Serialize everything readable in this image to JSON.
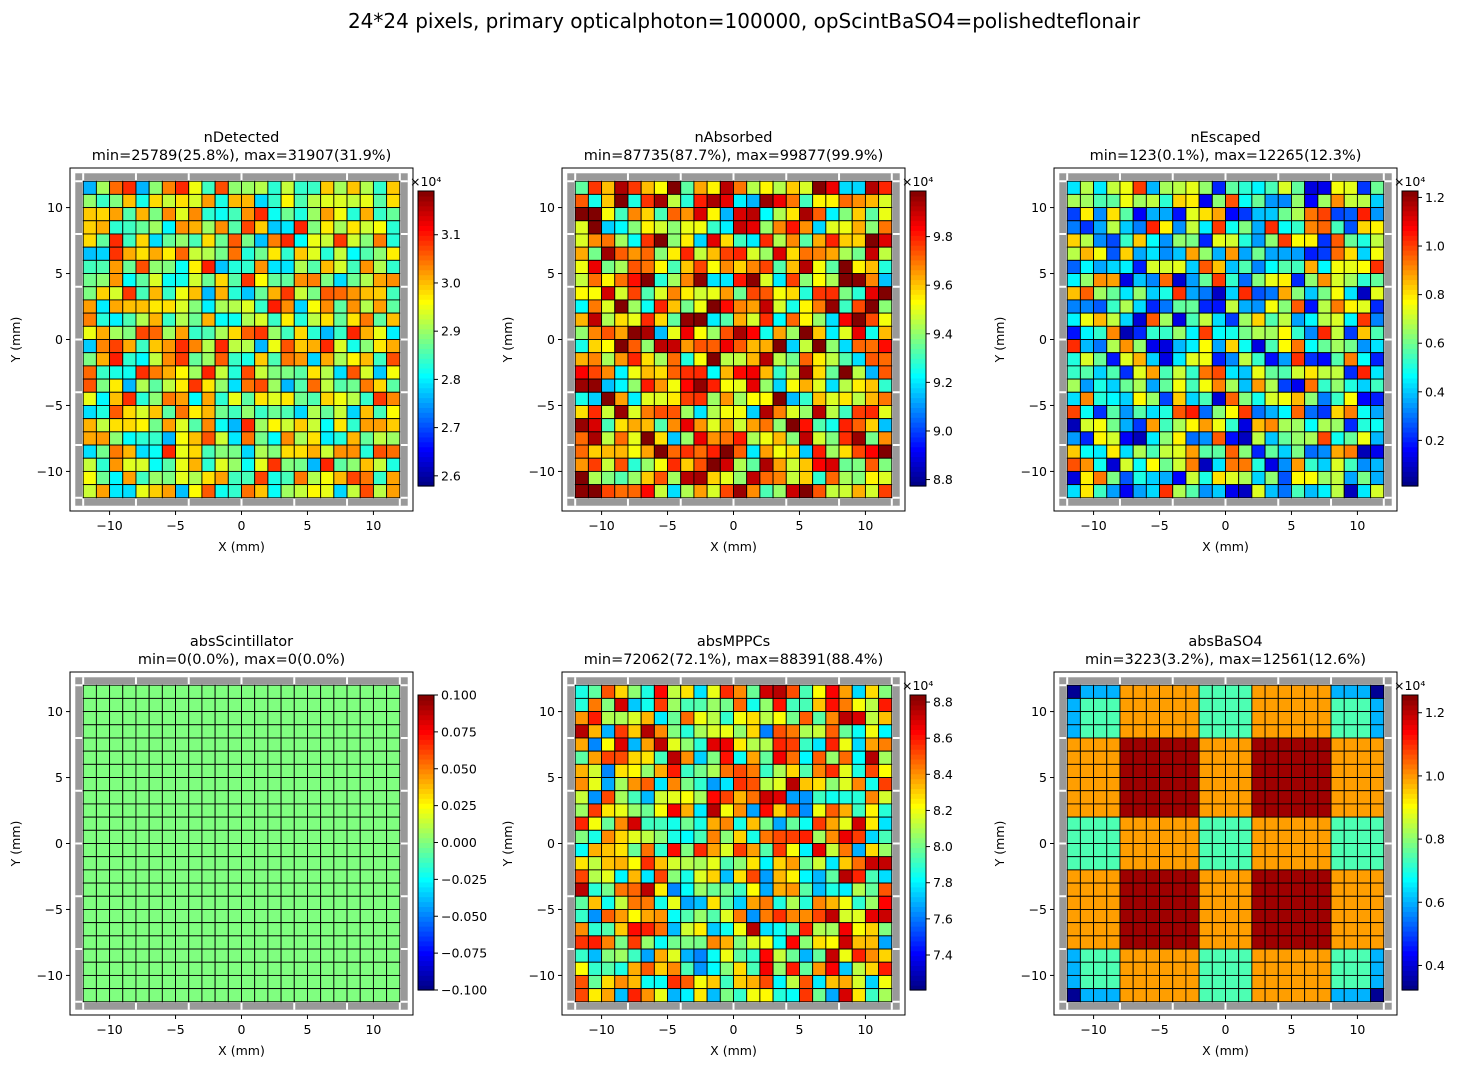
{
  "figure_title": "24*24 pixels, primary opticalphoton=100000, opScintBaSO4=polishedteflonair",
  "colormap": "jet",
  "colors": {
    "frame": "#999999",
    "cell_edge": "#000000",
    "gap_line": "#ffffff"
  },
  "chart_data": [
    {
      "type": "heatmap",
      "name": "nDetected",
      "title": "nDetected",
      "subtitle": "min=25789(25.8%), max=31907(31.9%)",
      "xlabel": "X (mm)",
      "ylabel": "Y (mm)",
      "xlim": [
        -13,
        13
      ],
      "ylim": [
        -13,
        13
      ],
      "xticks": [
        -10,
        -5,
        0,
        5,
        10
      ],
      "yticks": [
        -10,
        -5,
        0,
        5,
        10
      ],
      "grid": {
        "rows": 24,
        "cols": 24,
        "extent_mm": [
          -12,
          12
        ]
      },
      "vmin": 25789,
      "vmax": 31907,
      "colorbar": {
        "ticks": [
          2.6,
          2.7,
          2.8,
          2.9,
          3.0,
          3.1
        ],
        "scale": 10000,
        "exponent_label": "×10⁴"
      }
    },
    {
      "type": "heatmap",
      "name": "nAbsorbed",
      "title": "nAbsorbed",
      "subtitle": "min=87735(87.7%), max=99877(99.9%)",
      "xlabel": "X (mm)",
      "ylabel": "Y (mm)",
      "xlim": [
        -13,
        13
      ],
      "ylim": [
        -13,
        13
      ],
      "xticks": [
        -10,
        -5,
        0,
        5,
        10
      ],
      "yticks": [
        -10,
        -5,
        0,
        5,
        10
      ],
      "grid": {
        "rows": 24,
        "cols": 24,
        "extent_mm": [
          -12,
          12
        ]
      },
      "vmin": 87735,
      "vmax": 99877,
      "colorbar": {
        "ticks": [
          8.8,
          9.0,
          9.2,
          9.4,
          9.6,
          9.8
        ],
        "scale": 10000,
        "exponent_label": "×10⁴"
      }
    },
    {
      "type": "heatmap",
      "name": "nEscaped",
      "title": "nEscaped",
      "subtitle": "min=123(0.1%), max=12265(12.3%)",
      "xlabel": "X (mm)",
      "ylabel": "Y (mm)",
      "xlim": [
        -13,
        13
      ],
      "ylim": [
        -13,
        13
      ],
      "xticks": [
        -10,
        -5,
        0,
        5,
        10
      ],
      "yticks": [
        -10,
        -5,
        0,
        5,
        10
      ],
      "grid": {
        "rows": 24,
        "cols": 24,
        "extent_mm": [
          -12,
          12
        ]
      },
      "vmin": 123,
      "vmax": 12265,
      "colorbar": {
        "ticks": [
          0.2,
          0.4,
          0.6,
          0.8,
          1.0,
          1.2
        ],
        "scale": 10000,
        "exponent_label": "×10⁴"
      }
    },
    {
      "type": "heatmap",
      "name": "absScintillator",
      "title": "absScintillator",
      "subtitle": "min=0(0.0%), max=0(0.0%)",
      "xlabel": "X (mm)",
      "ylabel": "Y (mm)",
      "xlim": [
        -13,
        13
      ],
      "ylim": [
        -13,
        13
      ],
      "xticks": [
        -10,
        -5,
        0,
        5,
        10
      ],
      "yticks": [
        -10,
        -5,
        0,
        5,
        10
      ],
      "grid": {
        "rows": 24,
        "cols": 24,
        "extent_mm": [
          -12,
          12
        ]
      },
      "vmin": -0.1,
      "vmax": 0.1,
      "colorbar": {
        "ticks": [
          -0.1,
          -0.075,
          -0.05,
          -0.025,
          0.0,
          0.025,
          0.05,
          0.075,
          0.1
        ],
        "tick_labels": [
          "−0.100",
          "−0.075",
          "−0.050",
          "−0.025",
          "0.000",
          "0.025",
          "0.050",
          "0.075",
          "0.100"
        ],
        "scale": 1,
        "exponent_label": ""
      }
    },
    {
      "type": "heatmap",
      "name": "absMPPCs",
      "title": "absMPPCs",
      "subtitle": "min=72062(72.1%), max=88391(88.4%)",
      "xlabel": "X (mm)",
      "ylabel": "Y (mm)",
      "xlim": [
        -13,
        13
      ],
      "ylim": [
        -13,
        13
      ],
      "xticks": [
        -10,
        -5,
        0,
        5,
        10
      ],
      "yticks": [
        -10,
        -5,
        0,
        5,
        10
      ],
      "grid": {
        "rows": 24,
        "cols": 24,
        "extent_mm": [
          -12,
          12
        ]
      },
      "vmin": 72062,
      "vmax": 88391,
      "colorbar": {
        "ticks": [
          7.4,
          7.6,
          7.8,
          8.0,
          8.2,
          8.4,
          8.6,
          8.8
        ],
        "scale": 10000,
        "exponent_label": "×10⁴"
      }
    },
    {
      "type": "heatmap",
      "name": "absBaSO4",
      "title": "absBaSO4",
      "subtitle": "min=3223(3.2%), max=12561(12.6%)",
      "xlabel": "X (mm)",
      "ylabel": "Y (mm)",
      "xlim": [
        -13,
        13
      ],
      "ylim": [
        -13,
        13
      ],
      "xticks": [
        -10,
        -5,
        0,
        5,
        10
      ],
      "yticks": [
        -10,
        -5,
        0,
        5,
        10
      ],
      "grid": {
        "rows": 24,
        "cols": 24,
        "extent_mm": [
          -12,
          12
        ]
      },
      "vmin": 3223,
      "vmax": 12561,
      "colorbar": {
        "ticks": [
          0.4,
          0.6,
          0.8,
          1.0,
          1.2
        ],
        "scale": 10000,
        "exponent_label": "×10⁴"
      }
    }
  ]
}
